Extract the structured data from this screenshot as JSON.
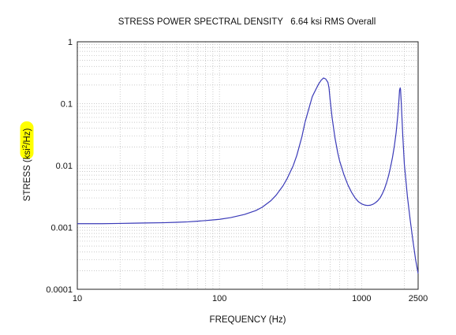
{
  "chart_data": {
    "type": "line",
    "title": "STRESS POWER SPECTRAL DENSITY   6.64 ksi RMS Overall",
    "xlabel": "FREQUENCY (Hz)",
    "ylabel": {
      "prefix": "STRESS ",
      "unit_open": "(ksi",
      "unit_sup": "2",
      "unit_close": "/Hz)"
    },
    "x_scale": "log",
    "y_scale": "log",
    "xlim": [
      10,
      2500
    ],
    "ylim": [
      0.0001,
      1
    ],
    "x_ticks": [
      {
        "value": 10,
        "label": "10"
      },
      {
        "value": 100,
        "label": "100"
      },
      {
        "value": 1000,
        "label": "1000"
      },
      {
        "value": 2500,
        "label": "2500"
      }
    ],
    "y_ticks": [
      {
        "value": 0.0001,
        "label": "0.0001"
      },
      {
        "value": 0.001,
        "label": "0.001"
      },
      {
        "value": 0.01,
        "label": "0.01"
      },
      {
        "value": 0.1,
        "label": "0.1"
      },
      {
        "value": 1,
        "label": "1"
      }
    ],
    "grid": true,
    "legend": "none",
    "line_color": "#3a3ab8",
    "highlight_color": "#ffff00",
    "series": [
      {
        "x": [
          10,
          12,
          15,
          20,
          25,
          30,
          40,
          50,
          60,
          70,
          80,
          90,
          100,
          120,
          150,
          180,
          200,
          230,
          250,
          280,
          300,
          330,
          350,
          380,
          400,
          430,
          450,
          480,
          500,
          520,
          540,
          560,
          580,
          590,
          600,
          620,
          650,
          680,
          700,
          750,
          800,
          850,
          900,
          950,
          1000,
          1050,
          1100,
          1150,
          1200,
          1250,
          1300,
          1350,
          1400,
          1450,
          1500,
          1550,
          1600,
          1650,
          1700,
          1750,
          1800,
          1825,
          1850,
          1870,
          1880,
          1900,
          1950,
          2000,
          2100,
          2200,
          2300,
          2400,
          2500
        ],
        "y": [
          0.00115,
          0.00115,
          0.00115,
          0.00116,
          0.00117,
          0.00118,
          0.00119,
          0.00121,
          0.00123,
          0.00126,
          0.00129,
          0.00132,
          0.00135,
          0.00144,
          0.00162,
          0.00187,
          0.00212,
          0.0027,
          0.0033,
          0.0047,
          0.0062,
          0.0099,
          0.0145,
          0.029,
          0.05,
          0.09,
          0.13,
          0.175,
          0.21,
          0.24,
          0.26,
          0.25,
          0.22,
          0.18,
          0.12,
          0.06,
          0.028,
          0.016,
          0.012,
          0.0072,
          0.0049,
          0.0037,
          0.003,
          0.0026,
          0.0024,
          0.0023,
          0.00226,
          0.00228,
          0.00236,
          0.0025,
          0.0027,
          0.003,
          0.0035,
          0.0042,
          0.0053,
          0.0069,
          0.0095,
          0.0135,
          0.0205,
          0.034,
          0.066,
          0.1,
          0.165,
          0.18,
          0.17,
          0.11,
          0.03,
          0.0105,
          0.0032,
          0.0013,
          0.0006,
          0.0003,
          0.00018
        ]
      }
    ]
  }
}
